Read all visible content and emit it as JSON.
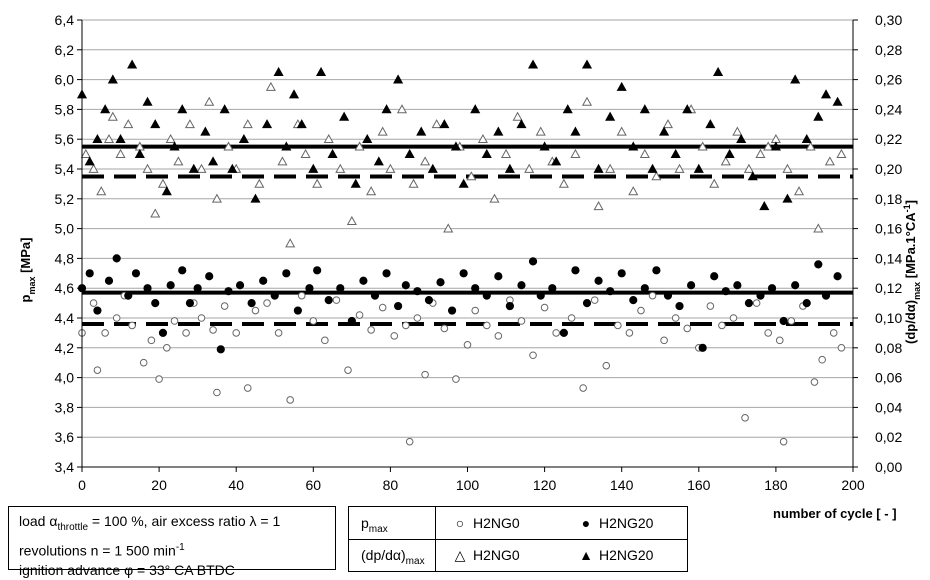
{
  "chart_data": {
    "type": "scatter",
    "xlabel": "number of cycle [ - ]",
    "ylabel_left": "pmax [MPa]",
    "ylabel_right": "(dp/dα)max [MPa.1°CA-1]",
    "xlim": [
      0,
      200
    ],
    "ylim_left": [
      3.4,
      6.4
    ],
    "ylim_right": [
      0.0,
      0.3
    ],
    "x_ticks": [
      "0",
      "20",
      "40",
      "60",
      "80",
      "100",
      "120",
      "140",
      "160",
      "180",
      "200"
    ],
    "y_ticks_left": [
      "3,4",
      "3,6",
      "3,8",
      "4,0",
      "4,2",
      "4,4",
      "4,6",
      "4,8",
      "5,0",
      "5,2",
      "5,4",
      "5,6",
      "5,8",
      "6,0",
      "6,2",
      "6,4"
    ],
    "y_ticks_right": [
      "0,00",
      "0,02",
      "0,04",
      "0,06",
      "0,08",
      "0,10",
      "0,12",
      "0,14",
      "0,16",
      "0,18",
      "0,20",
      "0,22",
      "0,24",
      "0,26",
      "0,28",
      "0,30"
    ],
    "grid": "horizontal",
    "series": [
      {
        "name": "H2NG0",
        "variable": "pmax",
        "axis": "left",
        "marker": "circle-open",
        "mean": 4.36,
        "x": [
          0,
          3,
          4,
          6,
          9,
          11,
          13,
          16,
          18,
          20,
          22,
          24,
          27,
          29,
          31,
          34,
          35,
          37,
          40,
          43,
          45,
          48,
          51,
          54,
          57,
          60,
          63,
          66,
          69,
          72,
          75,
          78,
          81,
          84,
          85,
          87,
          89,
          91,
          94,
          97,
          100,
          102,
          105,
          108,
          111,
          114,
          117,
          120,
          123,
          127,
          130,
          133,
          136,
          139,
          142,
          145,
          148,
          151,
          154,
          157,
          160,
          163,
          166,
          169,
          172,
          175,
          178,
          181,
          182,
          184,
          187,
          190,
          192,
          195,
          197
        ],
        "y": [
          4.3,
          4.5,
          4.05,
          4.3,
          4.4,
          4.55,
          4.35,
          4.1,
          4.25,
          3.99,
          4.2,
          4.38,
          4.3,
          4.5,
          4.4,
          4.32,
          3.9,
          4.48,
          4.3,
          3.93,
          4.45,
          4.5,
          4.3,
          3.85,
          4.55,
          4.38,
          4.25,
          4.52,
          4.05,
          4.42,
          4.32,
          4.47,
          4.28,
          4.35,
          3.57,
          4.4,
          4.02,
          4.5,
          4.33,
          3.99,
          4.22,
          4.45,
          4.35,
          4.28,
          4.52,
          4.38,
          4.15,
          4.47,
          4.3,
          4.4,
          3.93,
          4.52,
          4.08,
          4.35,
          4.3,
          4.45,
          4.55,
          4.25,
          4.4,
          4.33,
          4.2,
          4.48,
          4.35,
          4.4,
          3.73,
          4.5,
          4.3,
          4.25,
          3.57,
          4.38,
          4.48,
          3.97,
          4.12,
          4.3,
          4.2
        ]
      },
      {
        "name": "H2NG20",
        "variable": "pmax",
        "axis": "left",
        "marker": "circle-filled",
        "mean": 4.57,
        "x": [
          0,
          2,
          4,
          7,
          9,
          12,
          14,
          17,
          19,
          21,
          23,
          26,
          28,
          30,
          33,
          36,
          38,
          41,
          44,
          47,
          50,
          53,
          56,
          59,
          61,
          64,
          67,
          70,
          73,
          76,
          79,
          82,
          84,
          87,
          90,
          93,
          96,
          99,
          102,
          105,
          108,
          111,
          114,
          117,
          119,
          122,
          125,
          128,
          131,
          134,
          137,
          140,
          143,
          146,
          149,
          152,
          155,
          158,
          161,
          164,
          167,
          170,
          173,
          176,
          179,
          182,
          185,
          188,
          191,
          193,
          196
        ],
        "y": [
          4.6,
          4.7,
          4.45,
          4.65,
          4.8,
          4.55,
          4.7,
          4.6,
          4.5,
          4.3,
          4.62,
          4.72,
          4.5,
          4.6,
          4.68,
          4.19,
          4.58,
          4.62,
          4.5,
          4.65,
          4.55,
          4.7,
          4.45,
          4.6,
          4.72,
          4.52,
          4.6,
          4.38,
          4.65,
          4.55,
          4.7,
          4.48,
          4.62,
          4.58,
          4.52,
          4.64,
          4.45,
          4.7,
          4.6,
          4.55,
          4.68,
          4.48,
          4.62,
          4.78,
          4.55,
          4.6,
          4.3,
          4.72,
          4.5,
          4.65,
          4.58,
          4.7,
          4.52,
          4.6,
          4.72,
          4.55,
          4.48,
          4.62,
          4.2,
          4.68,
          4.58,
          4.62,
          4.5,
          4.55,
          4.6,
          4.38,
          4.62,
          4.5,
          4.76,
          4.55,
          4.68
        ]
      },
      {
        "name": "H2NG0",
        "variable": "(dp/dα)max",
        "axis": "right",
        "marker": "triangle-open",
        "mean": 0.195,
        "x": [
          1,
          3,
          5,
          7,
          8,
          10,
          12,
          15,
          17,
          19,
          21,
          23,
          25,
          28,
          31,
          33,
          35,
          38,
          40,
          43,
          46,
          49,
          52,
          54,
          56,
          58,
          61,
          64,
          67,
          70,
          72,
          75,
          78,
          80,
          83,
          86,
          89,
          92,
          95,
          98,
          101,
          104,
          107,
          110,
          113,
          116,
          119,
          122,
          125,
          128,
          131,
          134,
          137,
          140,
          143,
          146,
          149,
          152,
          155,
          158,
          161,
          164,
          167,
          170,
          173,
          176,
          178,
          180,
          183,
          186,
          189,
          191,
          194,
          197
        ],
        "y": [
          0.21,
          0.2,
          0.185,
          0.22,
          0.235,
          0.21,
          0.23,
          0.215,
          0.2,
          0.17,
          0.19,
          0.22,
          0.205,
          0.23,
          0.2,
          0.245,
          0.18,
          0.215,
          0.2,
          0.23,
          0.19,
          0.255,
          0.205,
          0.15,
          0.23,
          0.21,
          0.19,
          0.22,
          0.2,
          0.165,
          0.215,
          0.185,
          0.225,
          0.2,
          0.24,
          0.19,
          0.205,
          0.23,
          0.16,
          0.215,
          0.195,
          0.22,
          0.18,
          0.21,
          0.235,
          0.2,
          0.225,
          0.205,
          0.19,
          0.21,
          0.245,
          0.175,
          0.2,
          0.225,
          0.185,
          0.21,
          0.195,
          0.23,
          0.2,
          0.24,
          0.215,
          0.19,
          0.205,
          0.225,
          0.2,
          0.21,
          0.215,
          0.22,
          0.2,
          0.185,
          0.215,
          0.16,
          0.205,
          0.21
        ]
      },
      {
        "name": "H2NG20",
        "variable": "(dp/dα)max",
        "axis": "right",
        "marker": "triangle-filled",
        "mean": 0.215,
        "x": [
          0,
          2,
          4,
          6,
          8,
          10,
          13,
          15,
          17,
          19,
          22,
          24,
          26,
          29,
          32,
          34,
          37,
          39,
          42,
          45,
          48,
          51,
          53,
          55,
          57,
          60,
          62,
          65,
          68,
          71,
          74,
          77,
          79,
          82,
          85,
          88,
          91,
          94,
          97,
          99,
          102,
          105,
          108,
          111,
          114,
          117,
          120,
          123,
          126,
          128,
          131,
          134,
          137,
          140,
          143,
          146,
          148,
          151,
          154,
          157,
          160,
          163,
          165,
          168,
          171,
          174,
          177,
          180,
          183,
          185,
          188,
          191,
          193,
          196
        ],
        "y": [
          0.25,
          0.205,
          0.22,
          0.24,
          0.26,
          0.22,
          0.27,
          0.21,
          0.245,
          0.23,
          0.185,
          0.215,
          0.24,
          0.2,
          0.225,
          0.205,
          0.24,
          0.2,
          0.22,
          0.18,
          0.23,
          0.265,
          0.215,
          0.25,
          0.23,
          0.2,
          0.265,
          0.21,
          0.235,
          0.19,
          0.22,
          0.205,
          0.24,
          0.26,
          0.21,
          0.225,
          0.2,
          0.23,
          0.215,
          0.19,
          0.24,
          0.21,
          0.225,
          0.2,
          0.23,
          0.27,
          0.215,
          0.205,
          0.24,
          0.225,
          0.27,
          0.2,
          0.235,
          0.255,
          0.215,
          0.24,
          0.2,
          0.225,
          0.21,
          0.24,
          0.2,
          0.23,
          0.265,
          0.21,
          0.22,
          0.195,
          0.175,
          0.215,
          0.18,
          0.26,
          0.22,
          0.235,
          0.25,
          0.245
        ]
      }
    ]
  },
  "conditions": {
    "line1_prefix": "load α",
    "line1_sub": "throttle",
    "line1_suffix": " = 100 %, air excess ratio λ = 1",
    "line2_prefix": "revolutions n = 1 500 min",
    "line2_sup": "-1",
    "line3": "ignition advance φ = 33° CA BTDC"
  },
  "legend": {
    "row1_var": "pmax",
    "row2_var": "(dp/dα)max",
    "h2ng0": "H2NG0",
    "h2ng20": "H2NG20",
    "sym_circle_open": "○",
    "sym_circle_filled": "●",
    "sym_triangle_open": "△",
    "sym_triangle_filled": "▲"
  }
}
